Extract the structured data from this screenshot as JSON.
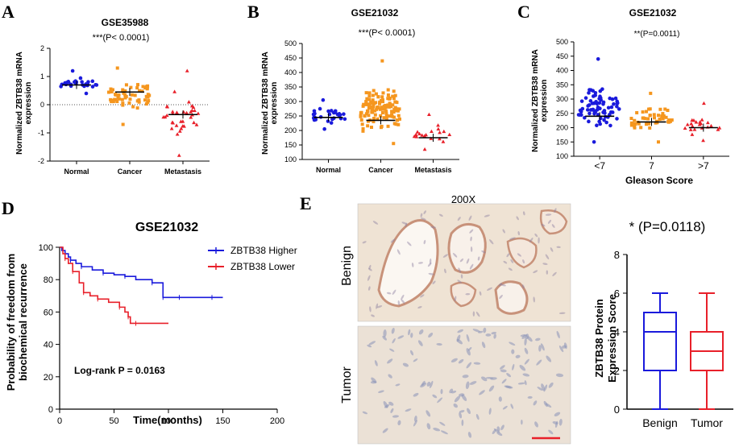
{
  "panel_labels": {
    "a": "A",
    "b": "B",
    "c": "C",
    "d": "D",
    "e": "E"
  },
  "panel_a": {
    "title": "GSE35988",
    "ylabel_line1": "Normalized ZBTB38 mRNA",
    "ylabel_line2": "expression",
    "sig_stars": "***",
    "sig_text": "(P< 0.0001)"
  },
  "panel_b": {
    "title": "GSE21032",
    "ylabel_line1": "Normalized ZBTB38 mRNA",
    "ylabel_line2": "expression",
    "sig_stars": "***",
    "sig_text": "(P< 0.0001)"
  },
  "panel_c": {
    "title": "GSE21032",
    "ylabel_line1": "Normalized ZBTB38 mRNA",
    "ylabel_line2": "expression",
    "sig_stars": "**",
    "sig_text": "(P=0.0011)",
    "xlabel": "Gleason Score"
  },
  "panel_d": {
    "title": "GSE21032",
    "ylabel_line1": "Probability of freedom from",
    "ylabel_line2": "biochemical recurrence",
    "xlabel": "Time(months)",
    "legend_higher": "ZBTB38 Higher",
    "legend_lower": "ZBTB38 Lower",
    "logrank": "Log-rank P = 0.0163"
  },
  "panel_e": {
    "magnification": "200X",
    "row_benign": "Benign",
    "row_tumor": "Tumor",
    "sig": "* (P=0.0118)",
    "ylabel_line1": "ZBTB38 Protein",
    "ylabel_line2": "Expression Score"
  },
  "colors": {
    "normal": "#1a1adc",
    "cancer": "#f5961e",
    "metastasis": "#e8202a",
    "median": "#000000"
  },
  "chart_data": [
    {
      "id": "A",
      "type": "scatter",
      "title": "GSE35988",
      "ylabel": "Normalized ZBTB38 mRNA expression",
      "categories": [
        "Normal",
        "Cancer",
        "Metastasis"
      ],
      "yticks": [
        -2,
        -1,
        0,
        1,
        2
      ],
      "ylim": [
        -2,
        2
      ],
      "series": [
        {
          "name": "Normal",
          "median": 0.7,
          "min": 0.4,
          "max": 1.2,
          "n": 28
        },
        {
          "name": "Cancer",
          "median": 0.45,
          "min": -0.7,
          "max": 1.3,
          "n": 60
        },
        {
          "name": "Metastasis",
          "median": -0.35,
          "min": -1.8,
          "max": 1.2,
          "n": 35
        }
      ]
    },
    {
      "id": "B",
      "type": "scatter",
      "title": "GSE21032",
      "ylabel": "Normalized ZBTB38 mRNA expression",
      "categories": [
        "Normal",
        "Cancer",
        "Metastasis"
      ],
      "yticks": [
        100,
        150,
        200,
        250,
        300,
        350,
        400,
        450,
        500
      ],
      "ylim": [
        100,
        500
      ],
      "series": [
        {
          "name": "Normal",
          "median": 245,
          "min": 205,
          "max": 305,
          "n": 29
        },
        {
          "name": "Cancer",
          "median": 235,
          "min": 155,
          "max": 440,
          "n": 130
        },
        {
          "name": "Metastasis",
          "median": 175,
          "min": 135,
          "max": 255,
          "n": 19
        }
      ]
    },
    {
      "id": "C",
      "type": "scatter",
      "title": "GSE21032",
      "ylabel": "Normalized ZBTB38 mRNA expression",
      "xlabel": "Gleason Score",
      "categories": [
        "<7",
        "7",
        ">7"
      ],
      "yticks": [
        100,
        150,
        200,
        250,
        300,
        350,
        400,
        450,
        500
      ],
      "ylim": [
        100,
        500
      ],
      "series": [
        {
          "name": "<7",
          "median": 240,
          "min": 150,
          "max": 440,
          "n": 75
        },
        {
          "name": "7",
          "median": 220,
          "min": 150,
          "max": 320,
          "n": 50
        },
        {
          "name": ">7",
          "median": 200,
          "min": 155,
          "max": 285,
          "n": 22
        }
      ]
    },
    {
      "id": "D",
      "type": "line",
      "title": "GSE21032",
      "xlabel": "Time(months)",
      "ylabel": "Probability of freedom from biochemical recurrence",
      "xticks": [
        0,
        50,
        100,
        150,
        200
      ],
      "yticks": [
        0,
        20,
        40,
        60,
        80,
        100
      ],
      "xlim": [
        0,
        200
      ],
      "ylim": [
        0,
        100
      ],
      "series": [
        {
          "name": "ZBTB38 Higher",
          "x": [
            0,
            2,
            5,
            8,
            10,
            15,
            20,
            30,
            40,
            50,
            60,
            70,
            85,
            90,
            95,
            100,
            110,
            125,
            140,
            150
          ],
          "y": [
            100,
            98,
            96,
            94,
            92,
            90,
            88,
            86,
            84,
            83,
            82,
            80,
            78,
            78,
            69,
            69,
            69,
            69,
            69,
            69
          ]
        },
        {
          "name": "ZBTB38 Lower",
          "x": [
            0,
            3,
            5,
            8,
            12,
            18,
            22,
            28,
            35,
            45,
            55,
            60,
            63,
            65,
            70,
            100
          ],
          "y": [
            100,
            96,
            93,
            90,
            85,
            78,
            72,
            70,
            68,
            66,
            63,
            60,
            57,
            53,
            53,
            53
          ]
        }
      ]
    },
    {
      "id": "E",
      "type": "box",
      "ylabel": "ZBTB38 Protein Expression Score",
      "categories": [
        "Benign",
        "Tumor"
      ],
      "yticks": [
        0,
        2,
        4,
        6,
        8
      ],
      "ylim": [
        0,
        8
      ],
      "series": [
        {
          "name": "Benign",
          "min": 0,
          "q1": 2,
          "median": 4,
          "q3": 5,
          "max": 6
        },
        {
          "name": "Tumor",
          "min": 0,
          "q1": 2,
          "median": 3,
          "q3": 4,
          "max": 6
        }
      ]
    }
  ]
}
